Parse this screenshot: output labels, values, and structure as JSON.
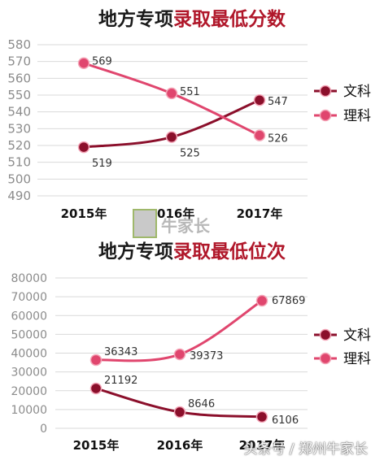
{
  "chart_data": [
    {
      "type": "line",
      "title_black": "地方专项",
      "title_red": "录取最低分数",
      "categories": [
        "2015年",
        "2016年",
        "2017年"
      ],
      "yticks": [
        490,
        500,
        510,
        520,
        530,
        540,
        550,
        560,
        570,
        580
      ],
      "ylim": [
        490,
        580
      ],
      "grid": true,
      "legend_position": "right",
      "series": [
        {
          "name": "文科",
          "values": [
            519,
            525,
            547
          ],
          "color": "#8b0f2b"
        },
        {
          "name": "理科",
          "values": [
            569,
            551,
            526
          ],
          "color": "#e0466e"
        }
      ]
    },
    {
      "type": "line",
      "title_black": "地方专项",
      "title_red": "录取最低位次",
      "categories": [
        "2015年",
        "2016年",
        "2017年"
      ],
      "yticks": [
        0,
        10000,
        20000,
        30000,
        40000,
        50000,
        60000,
        70000,
        80000
      ],
      "ylim": [
        0,
        80000
      ],
      "grid": true,
      "legend_position": "right",
      "series": [
        {
          "name": "文科",
          "values": [
            21192,
            8646,
            6106
          ],
          "color": "#8b0f2b"
        },
        {
          "name": "理科",
          "values": [
            36343,
            39373,
            67869
          ],
          "color": "#e0466e"
        }
      ]
    }
  ],
  "watermark": "头条号 / 郑州牛家长",
  "logo_text": "牛家长"
}
